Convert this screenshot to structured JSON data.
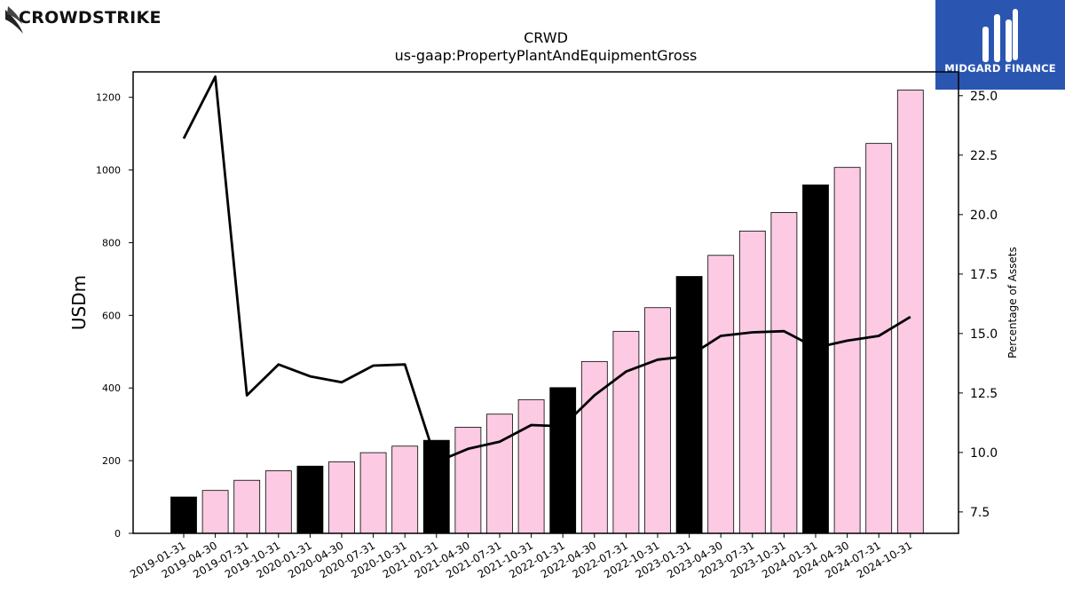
{
  "logos": {
    "left_brand": "CROWDSTRIKE",
    "right_brand": "MIDGARD FINANCE"
  },
  "colors": {
    "bar_default": "#fccae3",
    "bar_highlight": "#000000",
    "line": "#000000",
    "logo_bg": "#2a56b2"
  },
  "chart_data": {
    "type": "bar",
    "title": "CRWD",
    "subtitle": "us-gaap:PropertyPlantAndEquipmentGross",
    "ylabel": "USDm",
    "ylabel_right": "Percentage of Assets",
    "ylim": [
      0,
      1270
    ],
    "y2lim": [
      6.6,
      26.0
    ],
    "yticks": [
      0,
      200,
      400,
      600,
      800,
      1000,
      1200
    ],
    "y2ticks": [
      "7.5",
      "10.0",
      "12.5",
      "15.0",
      "17.5",
      "20.0",
      "22.5",
      "25.0"
    ],
    "categories": [
      "2019-01-31",
      "2019-04-30",
      "2019-07-31",
      "2019-10-31",
      "2020-01-31",
      "2020-04-30",
      "2020-07-31",
      "2020-10-31",
      "2021-01-31",
      "2021-04-30",
      "2021-07-31",
      "2021-10-31",
      "2022-01-31",
      "2022-04-30",
      "2022-07-31",
      "2022-10-31",
      "2023-01-31",
      "2023-04-30",
      "2023-07-31",
      "2023-10-31",
      "2024-01-31",
      "2024-04-30",
      "2024-07-31",
      "2024-10-31"
    ],
    "series": [
      {
        "type": "bar",
        "values": [
          100,
          118,
          146,
          172,
          185,
          197,
          222,
          240,
          256,
          292,
          328,
          368,
          401,
          473,
          556,
          621,
          707,
          765,
          832,
          883,
          959,
          1007,
          1073,
          1220
        ],
        "highlight": [
          true,
          false,
          false,
          false,
          true,
          false,
          false,
          false,
          true,
          false,
          false,
          false,
          true,
          false,
          false,
          false,
          true,
          false,
          false,
          false,
          true,
          false,
          false,
          false
        ]
      },
      {
        "type": "line",
        "axis": "right",
        "values": [
          23.2,
          25.8,
          12.4,
          13.7,
          13.2,
          12.95,
          13.65,
          13.7,
          9.6,
          10.15,
          10.45,
          11.15,
          11.1,
          12.4,
          13.4,
          13.9,
          14.05,
          14.9,
          15.05,
          15.1,
          14.4,
          14.7,
          14.9,
          15.7
        ]
      }
    ]
  }
}
